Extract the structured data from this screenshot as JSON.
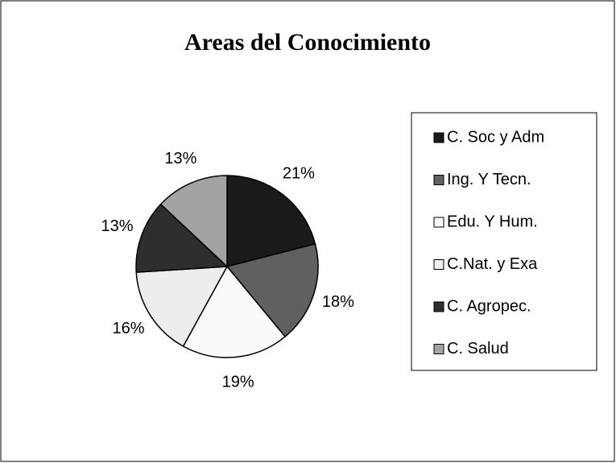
{
  "chart_data": {
    "type": "pie",
    "title": "Areas del Conocimiento",
    "categories": [
      "C. Soc y Adm",
      "Ing. Y Tecn.",
      "Edu. Y Hum.",
      "C.Nat. y Exa",
      "C. Agropec.",
      "C. Salud"
    ],
    "values": [
      21,
      18,
      19,
      16,
      13,
      13
    ],
    "value_labels": [
      "21%",
      "18%",
      "19%",
      "16%",
      "13%",
      "13%"
    ],
    "colors": [
      "#1a1a1a",
      "#606060",
      "#fafafa",
      "#ededed",
      "#2e2e2e",
      "#a3a3a3"
    ],
    "legend": "right"
  }
}
